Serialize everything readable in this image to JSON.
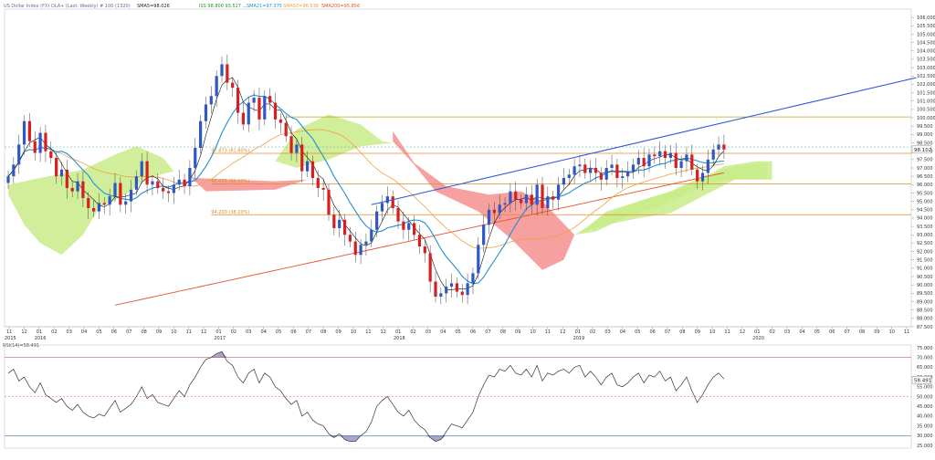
{
  "header": {
    "symbol": "US Dollar Index (FX) DLA+ (Last; Weekly) # 100 (1320)",
    "sma_label": "SMA5=98.026",
    "ichimoku_label": "ISS 98.800 93.527 ...",
    "sma21_label": "SMA21=97.375",
    "sma50_label": "SMA50=96.538",
    "sma200_label": "SMA200=95.856"
  },
  "colors": {
    "up_candle": "#2f57c8",
    "down_candle": "#d81e1e",
    "kijun": "#1f8fd6",
    "sma5": "#111111",
    "sma50": "#f0a040",
    "sma200": "#e8542a",
    "trendline": "#2a55d8",
    "cloud_bull": "#c9ec8a",
    "cloud_bear": "#f48f8f",
    "fib_line": "#e08a2c",
    "horizontal_line": "#c8a020",
    "rsi_line": "#333333"
  },
  "chart_data": [
    {
      "type": "line",
      "subtype": "candlestick",
      "title": "US Dollar Index (FX) DLA+ (Last; Weekly)",
      "ylim": [
        87.5,
        106.5
      ],
      "yticks": [
        "106.000",
        "105.500",
        "105.000",
        "104.500",
        "104.000",
        "103.500",
        "103.000",
        "102.500",
        "102.000",
        "101.500",
        "101.000",
        "100.500",
        "100.000",
        "99.500",
        "99.000",
        "98.500",
        "98.000",
        "97.500",
        "97.000",
        "96.500",
        "96.000",
        "95.500",
        "95.000",
        "94.500",
        "94.000",
        "93.500",
        "93.000",
        "92.500",
        "92.000",
        "91.500",
        "91.000",
        "90.500",
        "90.000",
        "89.500",
        "89.000",
        "88.500",
        "88.000",
        "87.500"
      ],
      "last_price_label": "98.102",
      "x_labels": [
        "11",
        "12",
        "01",
        "02",
        "03",
        "04",
        "05",
        "06",
        "07",
        "08",
        "09",
        "10",
        "11",
        "12",
        "01",
        "02",
        "03",
        "04",
        "05",
        "06",
        "07",
        "08",
        "09",
        "10",
        "11",
        "12",
        "01",
        "02",
        "03",
        "04",
        "05",
        "06",
        "07",
        "08",
        "09",
        "10",
        "11",
        "12",
        "01",
        "02",
        "03",
        "04",
        "05",
        "06",
        "07",
        "08",
        "09",
        "10",
        "11",
        "12",
        "01",
        "02",
        "03",
        "04",
        "05",
        "06",
        "07",
        "08",
        "09",
        "10",
        "11"
      ],
      "year_labels": [
        "2015",
        "2016",
        "2017",
        "2018",
        "2019",
        "2020"
      ],
      "close_series": [
        96.5,
        97.2,
        98.4,
        99.8,
        98.6,
        97.9,
        99.1,
        98.0,
        97.6,
        96.5,
        96.9,
        95.8,
        95.6,
        96.2,
        95.2,
        94.6,
        94.4,
        94.9,
        94.8,
        95.3,
        96.1,
        94.8,
        95.0,
        95.7,
        96.5,
        97.4,
        96.0,
        96.2,
        95.8,
        95.6,
        95.5,
        96.0,
        96.3,
        95.9,
        97.0,
        98.2,
        99.8,
        100.8,
        101.3,
        102.5,
        103.2,
        102.1,
        101.8,
        100.3,
        99.6,
        100.9,
        101.2,
        99.9,
        101.3,
        100.9,
        99.9,
        99.7,
        98.9,
        97.9,
        98.4,
        96.8,
        97.4,
        96.4,
        95.8,
        95.7,
        94.2,
        93.4,
        93.9,
        93.0,
        92.6,
        91.8,
        92.4,
        92.6,
        93.3,
        94.4,
        94.9,
        95.3,
        94.6,
        93.8,
        93.3,
        93.7,
        93.0,
        92.3,
        91.9,
        90.2,
        89.3,
        89.5,
        89.9,
        90.1,
        89.6,
        89.4,
        90.1,
        90.7,
        92.4,
        93.6,
        94.5,
        94.3,
        94.8,
        94.9,
        95.6,
        95.1,
        94.9,
        95.4,
        94.8,
        96.0,
        94.6,
        95.3,
        95.1,
        96.0,
        96.4,
        96.6,
        97.1,
        97.2,
        96.7,
        97.0,
        96.7,
        96.3,
        97.0,
        97.2,
        96.4,
        96.5,
        96.8,
        97.2,
        97.6,
        97.1,
        97.8,
        97.7,
        98.0,
        97.6,
        97.9,
        97.0,
        97.4,
        97.8,
        96.9,
        96.2,
        96.7,
        97.5,
        98.1,
        98.4,
        98.1
      ],
      "annotations": [
        {
          "label": "97.873 (61.80%)",
          "y": 97.873
        },
        {
          "label": "96.036 (50.00%)",
          "y": 96.036
        },
        {
          "label": "94.200 (38.20%)",
          "y": 94.2
        }
      ],
      "horizontal_levels": [
        100.05,
        97.82,
        95.84,
        94.2
      ],
      "trendline": {
        "x_from_bar": 68,
        "y_from": 94.8,
        "x_to_bar": 170,
        "y_to": 102.4
      }
    },
    {
      "type": "line",
      "title": "RSI(14)=58.491",
      "ylim": [
        25,
        75
      ],
      "yticks": [
        "75.000",
        "70.000",
        "65.000",
        "60.000",
        "55.000",
        "50.000",
        "45.000",
        "40.000",
        "35.000",
        "30.000",
        "25.000"
      ],
      "last_value_label": "58.491",
      "levels": [
        70,
        50,
        30
      ],
      "values": [
        62,
        64,
        58,
        60,
        55,
        52,
        57,
        51,
        49,
        47,
        49,
        45,
        43,
        46,
        42,
        40,
        39,
        41,
        40,
        44,
        48,
        42,
        44,
        46,
        50,
        55,
        49,
        51,
        47,
        46,
        45,
        49,
        53,
        50,
        56,
        60,
        65,
        69,
        70,
        72,
        73,
        68,
        66,
        60,
        57,
        62,
        64,
        57,
        62,
        60,
        55,
        53,
        49,
        46,
        48,
        40,
        42,
        38,
        36,
        35,
        31,
        29,
        31,
        28,
        27,
        27,
        30,
        32,
        37,
        45,
        48,
        50,
        46,
        42,
        40,
        43,
        38,
        35,
        33,
        29,
        27,
        28,
        32,
        36,
        35,
        34,
        38,
        42,
        50,
        56,
        61,
        60,
        64,
        63,
        66,
        62,
        61,
        64,
        60,
        66,
        58,
        62,
        61,
        63,
        64,
        62,
        65,
        66,
        60,
        63,
        60,
        56,
        60,
        62,
        56,
        55,
        57,
        60,
        62,
        57,
        61,
        60,
        63,
        58,
        60,
        53,
        56,
        60,
        53,
        47,
        51,
        56,
        60,
        62,
        59
      ]
    }
  ]
}
